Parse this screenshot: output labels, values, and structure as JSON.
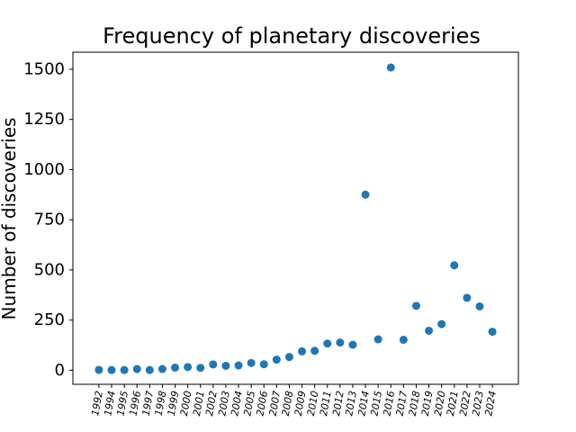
{
  "chart_data": {
    "type": "scatter",
    "title": "Frequency of planetary discoveries",
    "xlabel": "",
    "ylabel": "Number of discoveries",
    "x": [
      "1992",
      "1994",
      "1995",
      "1996",
      "1997",
      "1998",
      "1999",
      "2000",
      "2001",
      "2002",
      "2003",
      "2004",
      "2005",
      "2006",
      "2007",
      "2008",
      "2009",
      "2010",
      "2011",
      "2012",
      "2013",
      "2014",
      "2015",
      "2016",
      "2017",
      "2018",
      "2019",
      "2020",
      "2021",
      "2022",
      "2023",
      "2024"
    ],
    "series": [
      {
        "color": "#1f77b4",
        "values": [
          2,
          1,
          1,
          6,
          1,
          6,
          13,
          16,
          12,
          29,
          22,
          24,
          36,
          30,
          53,
          66,
          94,
          97,
          133,
          138,
          127,
          875,
          154,
          1509,
          152,
          321,
          197,
          230,
          523,
          361,
          318,
          192
        ]
      }
    ],
    "yticks": [
      0,
      250,
      500,
      750,
      1000,
      1250,
      1500
    ],
    "ylim": [
      -70,
      1585
    ],
    "grid": false,
    "legend": false
  }
}
